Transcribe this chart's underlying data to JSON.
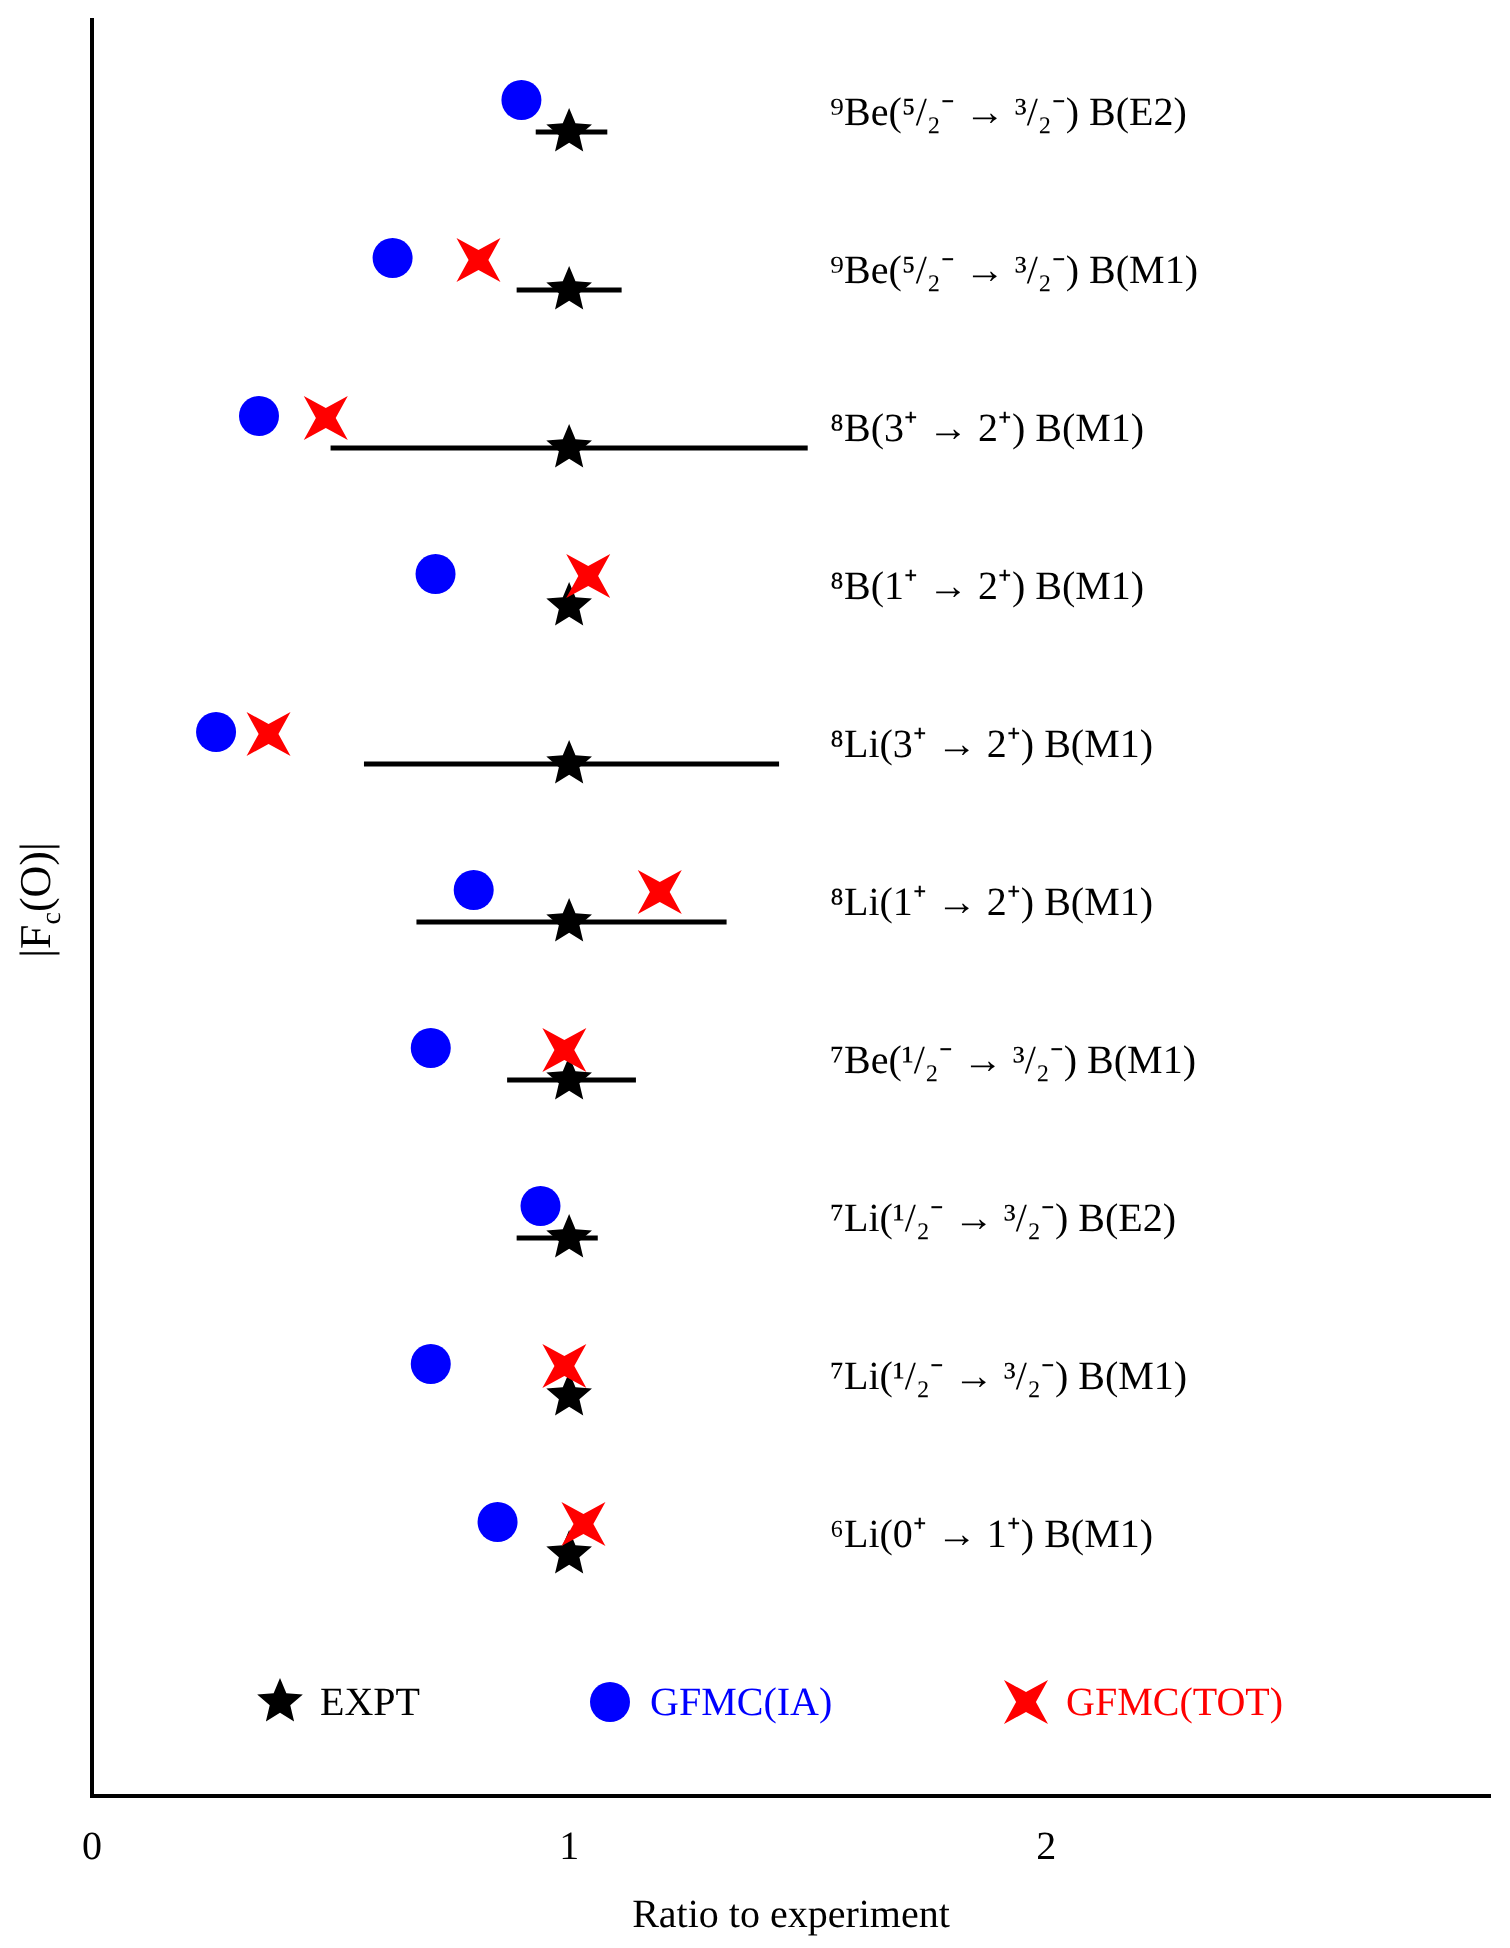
{
  "chart_data": {
    "type": "scatter",
    "xlabel": "Ratio to experiment",
    "ylabel": "|F$_{c}$(O)|",
    "categories": [
      "⁹Be(⁵/₂⁻ → ³/₂⁻) B(E2)",
      "⁹Be(⁵/₂⁻ → ³/₂⁻) B(M1)",
      "⁸B(3⁺ → 2⁺) B(M1)",
      "⁸B(1⁺ → 2⁺) B(M1)",
      "⁸Li(3⁺ → 2⁺) B(M1)",
      "⁸Li(1⁺ → 2⁺) B(M1)",
      "⁷Be(¹/₂⁻ → ³/₂⁻) B(M1)",
      "⁷Li(¹/₂⁻ → ³/₂⁻) B(E2)",
      "⁷Li(¹/₂⁻ → ³/₂⁻) B(M1)",
      "⁶Li(0⁺ → 1⁺) B(M1)"
    ],
    "series": [
      {
        "name": "EXPT",
        "color": "#000000",
        "marker": "star",
        "values": [
          1,
          1,
          1,
          1,
          1,
          1,
          1,
          1,
          1,
          1
        ],
        "errors": [
          [
            0.93,
            1.08
          ],
          [
            0.89,
            1.11
          ],
          [
            0.5,
            1.5
          ],
          null,
          [
            0.57,
            1.44
          ],
          [
            0.68,
            1.33
          ],
          [
            0.87,
            1.14
          ],
          [
            0.89,
            1.06
          ],
          null,
          null
        ]
      },
      {
        "name": "GFMC(IA)",
        "color": "#0000ff",
        "marker": "circle",
        "values": [
          0.9,
          0.63,
          0.35,
          0.72,
          0.26,
          0.8,
          0.71,
          0.94,
          0.71,
          0.85
        ]
      },
      {
        "name": "GFMC(TOT)",
        "color": "#ff0000",
        "marker": "cross",
        "values": [
          null,
          0.81,
          0.49,
          1.04,
          0.37,
          1.19,
          0.99,
          null,
          0.99,
          1.03
        ]
      }
    ],
    "orientation": "horizontal",
    "xlim": [
      0,
      2.93
    ],
    "xticks": [
      0,
      1,
      2
    ],
    "grid": false,
    "legend": "bottom"
  }
}
